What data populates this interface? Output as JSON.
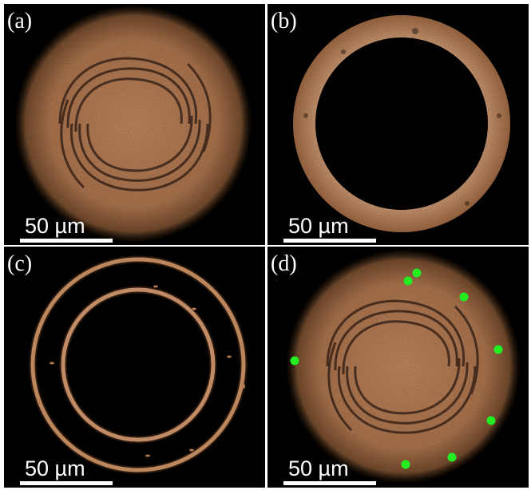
{
  "panels": [
    {
      "label": "(a)",
      "scale_label": "50 µm"
    },
    {
      "label": "(b)",
      "scale_label": "50 µm"
    },
    {
      "label": "(c)",
      "scale_label": "50 µm"
    },
    {
      "label": "(d)",
      "scale_label": "50 µm"
    }
  ],
  "colors": {
    "glow": "#d49a6a",
    "marker": "#22ee22",
    "background": "#000000"
  }
}
